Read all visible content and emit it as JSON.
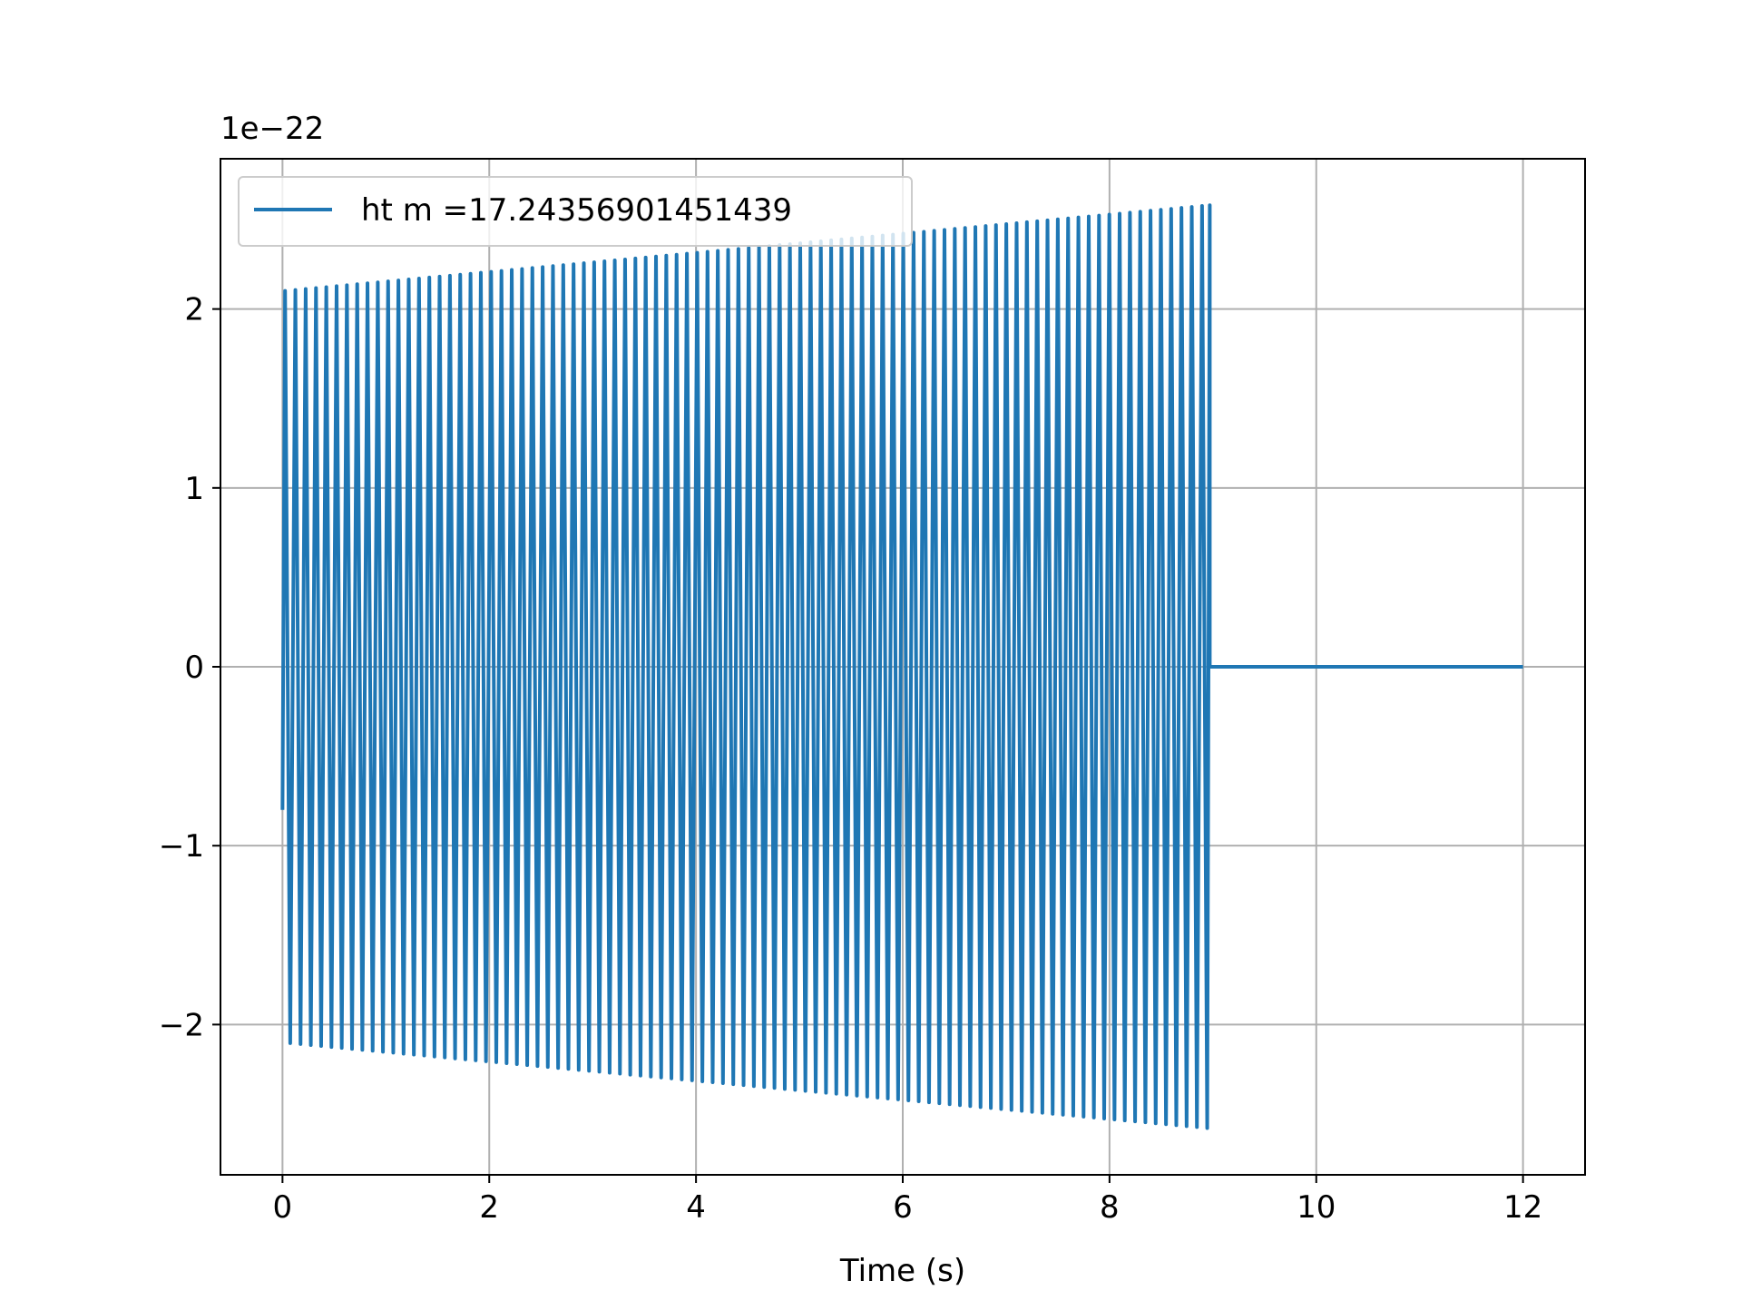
{
  "chart_data": {
    "type": "line",
    "title": "",
    "xlabel": "Time (s)",
    "ylabel": "",
    "y_offset_text": "1e−22",
    "xlim": [
      -0.6,
      12.6
    ],
    "ylim": [
      -2.84,
      2.84
    ],
    "x_scale": "linear",
    "y_scale": "linear",
    "grid": true,
    "legend_position": "upper left",
    "x_ticks": [
      0,
      2,
      4,
      6,
      8,
      10,
      12
    ],
    "x_tick_labels": [
      "0",
      "2",
      "4",
      "6",
      "8",
      "10",
      "12"
    ],
    "y_ticks": [
      -2,
      -1,
      0,
      1,
      2
    ],
    "y_tick_labels": [
      "−2",
      "−1",
      "0",
      "1",
      "2"
    ],
    "series": [
      {
        "name": "ht m =17.24356901451439",
        "color": "#1f77b4",
        "signal": {
          "start_time": 0.0,
          "end_time": 8.97,
          "initial_value": -0.8,
          "amplitude_start": 2.1,
          "amplitude_end": 2.58,
          "cycle_count": 90,
          "tail_end_time": 12.0,
          "tail_value": 0.0
        },
        "envelope": {
          "x": [
            0.0,
            2.0,
            4.0,
            6.0,
            8.0,
            8.97
          ],
          "upper": [
            2.1,
            2.2,
            2.3,
            2.41,
            2.52,
            2.58
          ],
          "lower": [
            -2.1,
            -2.2,
            -2.3,
            -2.41,
            -2.52,
            -2.58
          ]
        }
      }
    ]
  }
}
